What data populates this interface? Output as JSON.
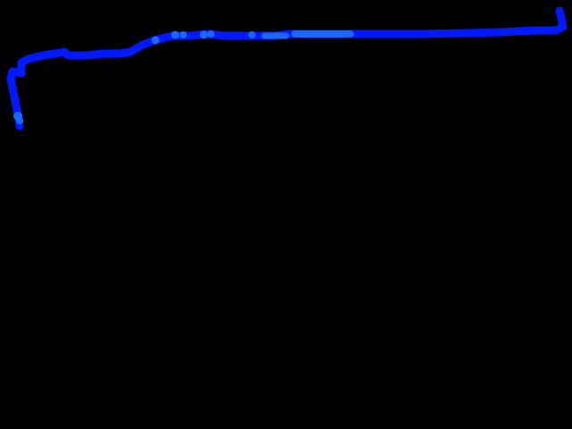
{
  "canvas": {
    "background": "#000000"
  },
  "stroke": {
    "primary_color": "#0019ff",
    "highlight_color": "#1a66ff"
  }
}
